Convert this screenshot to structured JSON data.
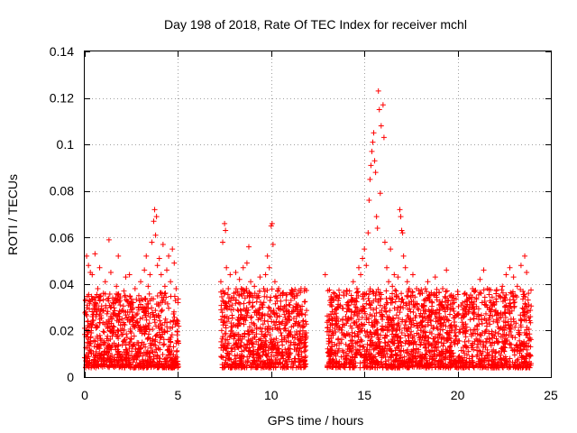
{
  "chart_data": {
    "type": "scatter",
    "title": "Day 198 of 2018, Rate Of TEC Index for receiver mchl",
    "xlabel": "GPS time / hours",
    "ylabel": "ROTI / TECUs",
    "xlim": [
      0,
      25
    ],
    "ylim": [
      0,
      0.14
    ],
    "xticks": [
      0,
      5,
      10,
      15,
      20,
      25
    ],
    "xtick_labels": [
      "0",
      "5",
      "10",
      "15",
      "20",
      "25"
    ],
    "yticks": [
      0,
      0.02,
      0.04,
      0.06,
      0.08,
      0.1,
      0.12,
      0.14
    ],
    "ytick_labels": [
      "0",
      "0.02",
      "0.04",
      "0.06",
      "0.08",
      "0.1",
      "0.12",
      "0.14"
    ],
    "grid": true,
    "marker": "plus",
    "color": "#ff0000",
    "series": [
      {
        "name": "ROTI",
        "points": [
          [
            0.0,
            0.021
          ],
          [
            0.05,
            0.028
          ],
          [
            0.1,
            0.052
          ],
          [
            0.15,
            0.015
          ],
          [
            0.2,
            0.048
          ],
          [
            0.25,
            0.033
          ],
          [
            0.3,
            0.045
          ],
          [
            0.35,
            0.019
          ],
          [
            0.4,
            0.044
          ],
          [
            0.5,
            0.031
          ],
          [
            0.55,
            0.053
          ],
          [
            0.6,
            0.026
          ],
          [
            0.7,
            0.038
          ],
          [
            0.8,
            0.047
          ],
          [
            0.9,
            0.029
          ],
          [
            1.0,
            0.036
          ],
          [
            1.1,
            0.041
          ],
          [
            1.2,
            0.022
          ],
          [
            1.3,
            0.059
          ],
          [
            1.4,
            0.045
          ],
          [
            1.5,
            0.034
          ],
          [
            1.6,
            0.027
          ],
          [
            1.7,
            0.039
          ],
          [
            1.8,
            0.052
          ],
          [
            1.9,
            0.031
          ],
          [
            2.0,
            0.025
          ],
          [
            2.1,
            0.037
          ],
          [
            2.2,
            0.043
          ],
          [
            2.3,
            0.028
          ],
          [
            2.4,
            0.044
          ],
          [
            2.5,
            0.019
          ],
          [
            2.6,
            0.032
          ],
          [
            2.7,
            0.038
          ],
          [
            2.8,
            0.024
          ],
          [
            2.9,
            0.035
          ],
          [
            3.0,
            0.041
          ],
          [
            3.1,
            0.029
          ],
          [
            3.2,
            0.046
          ],
          [
            3.3,
            0.052
          ],
          [
            3.4,
            0.039
          ],
          [
            3.5,
            0.044
          ],
          [
            3.6,
            0.058
          ],
          [
            3.7,
            0.067
          ],
          [
            3.75,
            0.072
          ],
          [
            3.8,
            0.061
          ],
          [
            3.85,
            0.069
          ],
          [
            3.9,
            0.048
          ],
          [
            4.0,
            0.051
          ],
          [
            4.1,
            0.044
          ],
          [
            4.2,
            0.057
          ],
          [
            4.3,
            0.039
          ],
          [
            4.4,
            0.046
          ],
          [
            4.5,
            0.052
          ],
          [
            4.6,
            0.041
          ],
          [
            4.7,
            0.055
          ],
          [
            4.8,
            0.049
          ],
          [
            4.9,
            0.038
          ],
          [
            5.0,
            0.032
          ],
          [
            7.3,
            0.041
          ],
          [
            7.4,
            0.058
          ],
          [
            7.5,
            0.066
          ],
          [
            7.55,
            0.063
          ],
          [
            7.6,
            0.047
          ],
          [
            7.7,
            0.038
          ],
          [
            7.8,
            0.044
          ],
          [
            7.9,
            0.031
          ],
          [
            8.0,
            0.036
          ],
          [
            8.1,
            0.045
          ],
          [
            8.2,
            0.029
          ],
          [
            8.3,
            0.042
          ],
          [
            8.4,
            0.038
          ],
          [
            8.5,
            0.047
          ],
          [
            8.6,
            0.034
          ],
          [
            8.7,
            0.049
          ],
          [
            8.8,
            0.056
          ],
          [
            8.9,
            0.041
          ],
          [
            9.0,
            0.032
          ],
          [
            9.1,
            0.039
          ],
          [
            9.2,
            0.028
          ],
          [
            9.3,
            0.035
          ],
          [
            9.4,
            0.043
          ],
          [
            9.5,
            0.031
          ],
          [
            9.6,
            0.038
          ],
          [
            9.7,
            0.044
          ],
          [
            9.8,
            0.052
          ],
          [
            9.9,
            0.047
          ],
          [
            10.0,
            0.065
          ],
          [
            10.05,
            0.066
          ],
          [
            10.1,
            0.057
          ],
          [
            10.2,
            0.041
          ],
          [
            10.3,
            0.034
          ],
          [
            10.4,
            0.038
          ],
          [
            10.5,
            0.029
          ],
          [
            10.6,
            0.036
          ],
          [
            10.7,
            0.027
          ],
          [
            10.8,
            0.033
          ],
          [
            10.9,
            0.025
          ],
          [
            11.0,
            0.031
          ],
          [
            11.1,
            0.028
          ],
          [
            11.2,
            0.022
          ],
          [
            11.4,
            0.035
          ],
          [
            11.5,
            0.027
          ],
          [
            11.6,
            0.038
          ],
          [
            11.7,
            0.024
          ],
          [
            11.8,
            0.019
          ],
          [
            12.9,
            0.044
          ],
          [
            13.1,
            0.018
          ],
          [
            13.2,
            0.027
          ],
          [
            13.3,
            0.033
          ],
          [
            13.4,
            0.021
          ],
          [
            13.5,
            0.029
          ],
          [
            13.6,
            0.024
          ],
          [
            13.7,
            0.031
          ],
          [
            13.8,
            0.019
          ],
          [
            13.9,
            0.035
          ],
          [
            14.0,
            0.026
          ],
          [
            14.1,
            0.032
          ],
          [
            14.2,
            0.037
          ],
          [
            14.3,
            0.028
          ],
          [
            14.4,
            0.041
          ],
          [
            14.5,
            0.033
          ],
          [
            14.6,
            0.038
          ],
          [
            14.7,
            0.047
          ],
          [
            14.8,
            0.044
          ],
          [
            14.9,
            0.051
          ],
          [
            15.0,
            0.055
          ],
          [
            15.1,
            0.048
          ],
          [
            15.2,
            0.062
          ],
          [
            15.25,
            0.076
          ],
          [
            15.3,
            0.085
          ],
          [
            15.35,
            0.091
          ],
          [
            15.4,
            0.097
          ],
          [
            15.45,
            0.101
          ],
          [
            15.5,
            0.105
          ],
          [
            15.55,
            0.093
          ],
          [
            15.6,
            0.088
          ],
          [
            15.65,
            0.069
          ],
          [
            15.7,
            0.064
          ],
          [
            15.75,
            0.123
          ],
          [
            15.8,
            0.115
          ],
          [
            15.85,
            0.079
          ],
          [
            15.9,
            0.108
          ],
          [
            16.0,
            0.117
          ],
          [
            16.05,
            0.103
          ],
          [
            16.1,
            0.058
          ],
          [
            16.2,
            0.047
          ],
          [
            16.3,
            0.041
          ],
          [
            16.4,
            0.055
          ],
          [
            16.5,
            0.039
          ],
          [
            16.6,
            0.044
          ],
          [
            16.7,
            0.037
          ],
          [
            16.8,
            0.043
          ],
          [
            16.9,
            0.072
          ],
          [
            16.95,
            0.069
          ],
          [
            17.0,
            0.063
          ],
          [
            17.05,
            0.062
          ],
          [
            17.1,
            0.052
          ],
          [
            17.2,
            0.047
          ],
          [
            17.3,
            0.041
          ],
          [
            17.4,
            0.038
          ],
          [
            17.5,
            0.035
          ],
          [
            17.6,
            0.044
          ],
          [
            17.7,
            0.031
          ],
          [
            17.8,
            0.038
          ],
          [
            17.9,
            0.029
          ],
          [
            18.0,
            0.036
          ],
          [
            18.2,
            0.033
          ],
          [
            18.4,
            0.041
          ],
          [
            18.6,
            0.027
          ],
          [
            18.8,
            0.043
          ],
          [
            19.0,
            0.031
          ],
          [
            19.2,
            0.038
          ],
          [
            19.4,
            0.046
          ],
          [
            19.6,
            0.029
          ],
          [
            19.8,
            0.034
          ],
          [
            20.0,
            0.027
          ],
          [
            20.2,
            0.031
          ],
          [
            20.4,
            0.036
          ],
          [
            20.6,
            0.029
          ],
          [
            20.8,
            0.038
          ],
          [
            21.0,
            0.034
          ],
          [
            21.2,
            0.042
          ],
          [
            21.4,
            0.046
          ],
          [
            21.6,
            0.038
          ],
          [
            21.8,
            0.032
          ],
          [
            22.0,
            0.028
          ],
          [
            22.2,
            0.035
          ],
          [
            22.4,
            0.039
          ],
          [
            22.6,
            0.044
          ],
          [
            22.8,
            0.047
          ],
          [
            23.0,
            0.043
          ],
          [
            23.2,
            0.039
          ],
          [
            23.4,
            0.048
          ],
          [
            23.6,
            0.052
          ],
          [
            23.7,
            0.045
          ],
          [
            23.8,
            0.036
          ],
          [
            23.9,
            0.026
          ]
        ]
      }
    ]
  }
}
